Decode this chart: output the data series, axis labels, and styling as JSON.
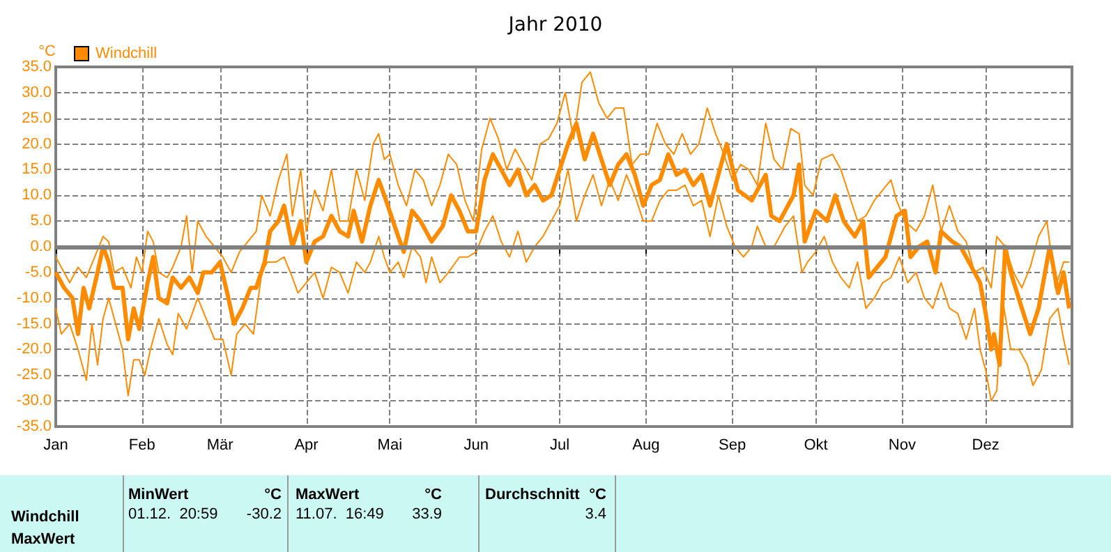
{
  "chart_data": {
    "type": "line",
    "title": "Jahr 2010",
    "ylabel": "°C",
    "marker": "none",
    "line_style": "solid",
    "grid": true,
    "legend": "top left",
    "xlim": [
      "2010-01-01",
      "2011-01-01"
    ],
    "xticks": [
      {
        "value": "2010-01-01",
        "label": "Jan"
      },
      {
        "value": "2010-02-01",
        "label": "Feb"
      },
      {
        "value": "2010-03-01",
        "label": "Mär"
      },
      {
        "value": "2010-04-01",
        "label": "Apr"
      },
      {
        "value": "2010-05-01",
        "label": "Mai"
      },
      {
        "value": "2010-06-01",
        "label": "Jun"
      },
      {
        "value": "2010-07-01",
        "label": "Jul"
      },
      {
        "value": "2010-08-01",
        "label": "Aug"
      },
      {
        "value": "2010-09-01",
        "label": "Sep"
      },
      {
        "value": "2010-10-01",
        "label": "Okt"
      },
      {
        "value": "2010-11-01",
        "label": "Nov"
      },
      {
        "value": "2010-12-01",
        "label": "Dez"
      }
    ],
    "ylim": [
      -35,
      35
    ],
    "yticks": [
      {
        "value": -35,
        "label": "-35.0"
      },
      {
        "value": -30,
        "label": "-30.0"
      },
      {
        "value": -25,
        "label": "-25.0"
      },
      {
        "value": -20,
        "label": "-20.0"
      },
      {
        "value": -15,
        "label": "-15.0"
      },
      {
        "value": -10,
        "label": "-10.0"
      },
      {
        "value": -5,
        "label": "-5.0"
      },
      {
        "value": 0,
        "label": "0.0"
      },
      {
        "value": 5,
        "label": "5.0"
      },
      {
        "value": 10,
        "label": "10.0"
      },
      {
        "value": 15,
        "label": "15.0"
      },
      {
        "value": 20,
        "label": "20.0"
      },
      {
        "value": 25,
        "label": "25.0"
      },
      {
        "value": 30,
        "label": "30.0"
      },
      {
        "value": 35,
        "label": "35.0"
      }
    ],
    "ref_lines": [
      {
        "axis": "y",
        "value": 0,
        "color": "#808080"
      }
    ],
    "series": [
      {
        "color": "#ff8c00",
        "x": [
          "2010-01-01",
          "2010-01-03",
          "2010-01-06",
          "2010-01-09",
          "2010-01-12",
          "2010-01-14",
          "2010-01-16",
          "2010-01-18",
          "2010-01-20",
          "2010-01-22",
          "2010-01-25",
          "2010-01-27",
          "2010-01-29",
          "2010-01-31",
          "2010-02-02",
          "2010-02-04",
          "2010-02-07",
          "2010-02-10",
          "2010-02-12",
          "2010-02-14",
          "2010-02-17",
          "2010-02-19",
          "2010-02-21",
          "2010-02-24",
          "2010-02-27",
          "2010-03-02",
          "2010-03-05",
          "2010-03-07",
          "2010-03-10",
          "2010-03-13",
          "2010-03-16",
          "2010-03-18",
          "2010-03-21",
          "2010-03-24",
          "2010-03-27",
          "2010-03-29",
          "2010-04-01",
          "2010-04-04",
          "2010-04-07",
          "2010-04-10",
          "2010-04-13",
          "2010-04-16",
          "2010-04-19",
          "2010-04-22",
          "2010-04-24",
          "2010-04-27",
          "2010-04-29",
          "2010-05-01",
          "2010-05-04",
          "2010-05-06",
          "2010-05-09",
          "2010-05-12",
          "2010-05-14",
          "2010-05-16",
          "2010-05-19",
          "2010-05-22",
          "2010-05-26",
          "2010-05-29",
          "2010-06-01",
          "2010-06-04",
          "2010-06-07",
          "2010-06-10",
          "2010-06-13",
          "2010-06-16",
          "2010-06-19",
          "2010-06-22",
          "2010-06-25",
          "2010-06-28",
          "2010-07-01",
          "2010-07-04",
          "2010-07-07",
          "2010-07-10",
          "2010-07-13",
          "2010-07-16",
          "2010-07-19",
          "2010-07-22",
          "2010-07-25",
          "2010-07-28",
          "2010-07-31",
          "2010-08-03",
          "2010-08-06",
          "2010-08-09",
          "2010-08-12",
          "2010-08-15",
          "2010-08-18",
          "2010-08-21",
          "2010-08-24",
          "2010-08-27",
          "2010-08-30",
          "2010-09-02",
          "2010-09-05",
          "2010-09-08",
          "2010-09-10",
          "2010-09-13",
          "2010-09-16",
          "2010-09-20",
          "2010-09-23",
          "2010-09-26",
          "2010-09-28",
          "2010-10-01",
          "2010-10-04",
          "2010-10-07",
          "2010-10-10",
          "2010-10-13",
          "2010-10-16",
          "2010-10-19",
          "2010-10-22",
          "2010-10-25",
          "2010-10-28",
          "2010-10-31",
          "2010-11-03",
          "2010-11-06",
          "2010-11-09",
          "2010-11-12",
          "2010-11-15",
          "2010-11-18",
          "2010-11-21",
          "2010-11-24",
          "2010-11-27",
          "2010-11-29",
          "2010-12-01",
          "2010-12-03",
          "2010-12-05",
          "2010-12-07",
          "2010-12-10",
          "2010-12-13",
          "2010-12-16",
          "2010-12-18",
          "2010-12-21",
          "2010-12-24",
          "2010-12-27",
          "2010-12-29",
          "2010-12-31"
        ],
        "values": [
          -12,
          -17,
          -15,
          -20,
          -26,
          -15,
          -23,
          -14,
          -10,
          -14,
          -20,
          -29,
          -22,
          -22,
          -25,
          -20,
          -14,
          -19,
          -21,
          -13,
          -16,
          -13,
          -10,
          -14,
          -18,
          -18,
          -25,
          -17,
          -15,
          -17,
          -5,
          -3,
          -3,
          -2,
          -6,
          -9,
          -7,
          -5,
          -10,
          -4,
          -5,
          -9,
          -3,
          -5,
          -3,
          2,
          -2,
          -5,
          -3,
          -6,
          0,
          -2,
          -7,
          -2,
          -7,
          -5,
          -2,
          -2,
          -1,
          3,
          6,
          1,
          -2,
          3,
          -3,
          0,
          2,
          5,
          8,
          15,
          5,
          10,
          14,
          8,
          13,
          9,
          14,
          10,
          5,
          5,
          9,
          11,
          11,
          12,
          8,
          9,
          2,
          10,
          4,
          0,
          -2,
          0,
          4,
          0,
          0,
          4,
          6,
          -5,
          -3,
          -1,
          2,
          -3,
          -6,
          -8,
          -3,
          -12,
          -10,
          -7,
          -6,
          -2,
          -7,
          -5,
          -10,
          -12,
          -7,
          -12,
          -13,
          -18,
          -12,
          -20,
          -24,
          -30,
          -28,
          -10,
          -20,
          -20,
          -23,
          -27,
          -24,
          -14,
          -12,
          -18,
          -23
        ]
      },
      {
        "name": "Windchill",
        "color": "#ff8c00",
        "x": [
          "2010-01-01",
          "2010-01-04",
          "2010-01-07",
          "2010-01-09",
          "2010-01-11",
          "2010-01-13",
          "2010-01-16",
          "2010-01-18",
          "2010-01-20",
          "2010-01-22",
          "2010-01-25",
          "2010-01-27",
          "2010-01-29",
          "2010-01-31",
          "2010-02-03",
          "2010-02-05",
          "2010-02-07",
          "2010-02-10",
          "2010-02-12",
          "2010-02-15",
          "2010-02-18",
          "2010-02-21",
          "2010-02-23",
          "2010-02-26",
          "2010-03-01",
          "2010-03-04",
          "2010-03-06",
          "2010-03-09",
          "2010-03-12",
          "2010-03-14",
          "2010-03-17",
          "2010-03-19",
          "2010-03-22",
          "2010-03-24",
          "2010-03-27",
          "2010-03-30",
          "2010-04-01",
          "2010-04-04",
          "2010-04-07",
          "2010-04-10",
          "2010-04-13",
          "2010-04-16",
          "2010-04-18",
          "2010-04-21",
          "2010-04-24",
          "2010-04-27",
          "2010-04-29",
          "2010-05-04",
          "2010-05-06",
          "2010-05-09",
          "2010-05-12",
          "2010-05-16",
          "2010-05-20",
          "2010-05-23",
          "2010-05-26",
          "2010-05-29",
          "2010-06-01",
          "2010-06-04",
          "2010-06-07",
          "2010-06-10",
          "2010-06-13",
          "2010-06-16",
          "2010-06-19",
          "2010-06-22",
          "2010-06-25",
          "2010-06-28",
          "2010-07-01",
          "2010-07-04",
          "2010-07-07",
          "2010-07-10",
          "2010-07-13",
          "2010-07-16",
          "2010-07-19",
          "2010-07-22",
          "2010-07-25",
          "2010-07-28",
          "2010-07-31",
          "2010-08-03",
          "2010-08-06",
          "2010-08-09",
          "2010-08-12",
          "2010-08-15",
          "2010-08-18",
          "2010-08-21",
          "2010-08-24",
          "2010-08-27",
          "2010-08-30",
          "2010-09-03",
          "2010-09-08",
          "2010-09-13",
          "2010-09-15",
          "2010-09-18",
          "2010-09-23",
          "2010-09-25",
          "2010-09-27",
          "2010-10-01",
          "2010-10-05",
          "2010-10-08",
          "2010-10-11",
          "2010-10-15",
          "2010-10-18",
          "2010-10-20",
          "2010-10-23",
          "2010-10-26",
          "2010-10-30",
          "2010-11-02",
          "2010-11-04",
          "2010-11-07",
          "2010-11-10",
          "2010-11-13",
          "2010-11-15",
          "2010-11-19",
          "2010-11-22",
          "2010-11-25",
          "2010-11-29",
          "2010-12-01",
          "2010-12-03",
          "2010-12-04",
          "2010-12-06",
          "2010-12-08",
          "2010-12-10",
          "2010-12-14",
          "2010-12-17",
          "2010-12-20",
          "2010-12-24",
          "2010-12-25",
          "2010-12-27",
          "2010-12-29",
          "2010-12-31"
        ],
        "values": [
          -5,
          -8,
          -10,
          -17,
          -8,
          -12,
          -5,
          0,
          -3,
          -8,
          -8,
          -18,
          -12,
          -16,
          -7,
          -2,
          -10,
          -11,
          -6,
          -8,
          -6,
          -9,
          -5,
          -5,
          -3,
          -10,
          -15,
          -12,
          -8,
          -8,
          -3,
          3,
          5,
          8,
          0,
          5,
          -3,
          1,
          2,
          6,
          3,
          2,
          7,
          1,
          8,
          13,
          10,
          2,
          -1,
          7,
          5,
          1,
          4,
          10,
          7,
          3,
          3,
          13,
          18,
          15,
          12,
          15,
          10,
          12,
          9,
          10,
          15,
          20,
          24,
          17,
          22,
          17,
          12,
          16,
          18,
          14,
          8,
          12,
          13,
          18,
          14,
          15,
          12,
          14,
          8,
          14,
          20,
          11,
          9,
          14,
          6,
          5,
          10,
          16,
          1,
          7,
          5,
          10,
          5,
          2,
          5,
          -6,
          -4,
          -2,
          6,
          7,
          -2,
          0,
          1,
          -5,
          3,
          1,
          0,
          -3,
          -7,
          -13,
          -20,
          -17,
          -23,
          0,
          -5,
          -12,
          -17,
          -12,
          0,
          -3,
          -9,
          -5,
          -12
        ]
      },
      {
        "color": "#ff8c00",
        "x": [
          "2010-01-01",
          "2010-01-03",
          "2010-01-06",
          "2010-01-09",
          "2010-01-12",
          "2010-01-15",
          "2010-01-18",
          "2010-01-20",
          "2010-01-22",
          "2010-01-25",
          "2010-01-28",
          "2010-01-30",
          "2010-02-01",
          "2010-02-03",
          "2010-02-05",
          "2010-02-07",
          "2010-02-10",
          "2010-02-12",
          "2010-02-15",
          "2010-02-17",
          "2010-02-19",
          "2010-02-21",
          "2010-02-24",
          "2010-02-27",
          "2010-03-02",
          "2010-03-05",
          "2010-03-08",
          "2010-03-11",
          "2010-03-14",
          "2010-03-16",
          "2010-03-19",
          "2010-03-22",
          "2010-03-25",
          "2010-03-27",
          "2010-03-30",
          "2010-04-01",
          "2010-04-04",
          "2010-04-07",
          "2010-04-10",
          "2010-04-13",
          "2010-04-16",
          "2010-04-19",
          "2010-04-22",
          "2010-04-25",
          "2010-04-27",
          "2010-04-29",
          "2010-05-01",
          "2010-05-04",
          "2010-05-07",
          "2010-05-10",
          "2010-05-13",
          "2010-05-16",
          "2010-05-19",
          "2010-05-22",
          "2010-05-25",
          "2010-05-28",
          "2010-05-31",
          "2010-06-03",
          "2010-06-06",
          "2010-06-09",
          "2010-06-12",
          "2010-06-15",
          "2010-06-18",
          "2010-06-21",
          "2010-06-24",
          "2010-06-27",
          "2010-06-30",
          "2010-07-03",
          "2010-07-06",
          "2010-07-09",
          "2010-07-12",
          "2010-07-15",
          "2010-07-18",
          "2010-07-21",
          "2010-07-24",
          "2010-07-27",
          "2010-07-30",
          "2010-08-02",
          "2010-08-05",
          "2010-08-08",
          "2010-08-11",
          "2010-08-14",
          "2010-08-17",
          "2010-08-20",
          "2010-08-23",
          "2010-08-26",
          "2010-08-29",
          "2010-09-01",
          "2010-09-04",
          "2010-09-07",
          "2010-09-10",
          "2010-09-13",
          "2010-09-16",
          "2010-09-19",
          "2010-09-22",
          "2010-09-25",
          "2010-09-27",
          "2010-09-30",
          "2010-10-03",
          "2010-10-07",
          "2010-10-10",
          "2010-10-13",
          "2010-10-16",
          "2010-10-19",
          "2010-10-22",
          "2010-10-25",
          "2010-10-28",
          "2010-10-30",
          "2010-11-02",
          "2010-11-06",
          "2010-11-09",
          "2010-11-12",
          "2010-11-15",
          "2010-11-18",
          "2010-11-21",
          "2010-11-24",
          "2010-11-27",
          "2010-11-30",
          "2010-12-03",
          "2010-12-05",
          "2010-12-08",
          "2010-12-11",
          "2010-12-14",
          "2010-12-17",
          "2010-12-20",
          "2010-12-23",
          "2010-12-26",
          "2010-12-29",
          "2010-12-31"
        ],
        "values": [
          -2,
          -4,
          -7,
          -4,
          -6,
          -2,
          2,
          1,
          -5,
          -4,
          -8,
          -2,
          -5,
          3,
          1,
          -5,
          -6,
          -4,
          0,
          6,
          -5,
          5,
          2,
          0,
          -2,
          -5,
          -1,
          1,
          3,
          10,
          6,
          13,
          18,
          6,
          15,
          3,
          11,
          7,
          15,
          5,
          5,
          15,
          9,
          20,
          22,
          17,
          18,
          12,
          8,
          15,
          13,
          8,
          12,
          18,
          16,
          9,
          5,
          19,
          25,
          21,
          15,
          19,
          16,
          13,
          20,
          21,
          24,
          30,
          21,
          32,
          34,
          28,
          25,
          27,
          27,
          16,
          18,
          18,
          24,
          20,
          18,
          22,
          18,
          20,
          27,
          22,
          18,
          13,
          16,
          15,
          12,
          24,
          17,
          15,
          23,
          22,
          12,
          10,
          17,
          18,
          15,
          10,
          5,
          6,
          9,
          11,
          13,
          9,
          5,
          3,
          6,
          12,
          3,
          8,
          3,
          1,
          -5,
          -4,
          -8,
          2,
          0,
          -5,
          -8,
          -4,
          2,
          5,
          -8,
          -3,
          -3
        ]
      }
    ],
    "annotations": [
      "MinWert",
      "°C",
      "MaxWert",
      "°C",
      "Durchschnitt",
      "°C",
      "Windchill",
      "01.12.  20:59",
      "-30.2",
      "11.07.  16:49",
      "33.9",
      "3.4",
      "MaxWert"
    ]
  }
}
